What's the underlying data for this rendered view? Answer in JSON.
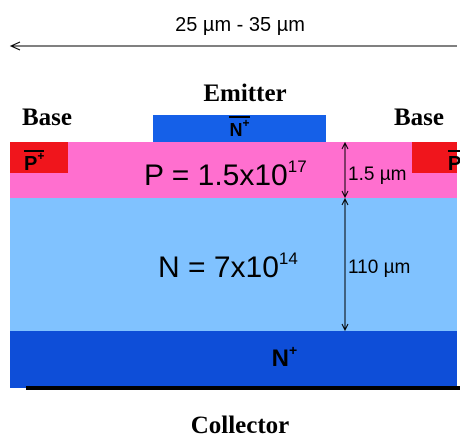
{
  "dimension": {
    "width_range": "25 µm - 35 µm"
  },
  "terminals": {
    "emitter": "Emitter",
    "base_left": "Base",
    "base_right": "Base",
    "collector": "Collector"
  },
  "regions": {
    "emitter_contact": {
      "label": "N",
      "sup": "+"
    },
    "base_contact_left": {
      "label": "P",
      "sup": "+"
    },
    "base_contact_right": {
      "label": "P",
      "sup": "+"
    },
    "collector_substrate": {
      "label": "N",
      "sup": "+"
    }
  },
  "layers": {
    "p_base": {
      "doping_text": "P = 1.5x10",
      "doping_exp": "17",
      "thickness": "1.5 µm"
    },
    "n_drift": {
      "doping_text": "N = 7x10",
      "doping_exp": "14",
      "thickness": "110 µm"
    }
  },
  "colors": {
    "n_plus": "#0e4ed8",
    "n_drift": "#80c2ff",
    "p_base": "#ff6fcf",
    "p_plus": "#f0151c"
  }
}
